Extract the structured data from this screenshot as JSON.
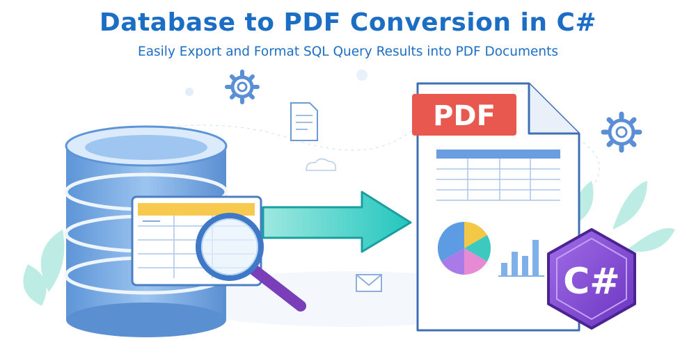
{
  "header": {
    "title": "Database to PDF Conversion in C#",
    "subtitle": "Easily Export and Format SQL Query Results into PDF Documents"
  },
  "illustration": {
    "pdf_badge": "PDF",
    "csharp_badge": "C#",
    "icons": [
      "database-icon",
      "table-card",
      "magnifier-icon",
      "arrow-right-icon",
      "pdf-document",
      "pie-chart-icon",
      "bar-chart-icon",
      "csharp-logo",
      "gear-icon",
      "document-icon",
      "cloud-icon",
      "leaf-decoration"
    ],
    "colors": {
      "title": "#1c6ec4",
      "database": "#7aaee6",
      "arrow": "#35cfc4",
      "pdf_badge": "#e8584e",
      "csharp": "#8a4fd6",
      "magnifier_handle": "#7a3fb8"
    }
  }
}
